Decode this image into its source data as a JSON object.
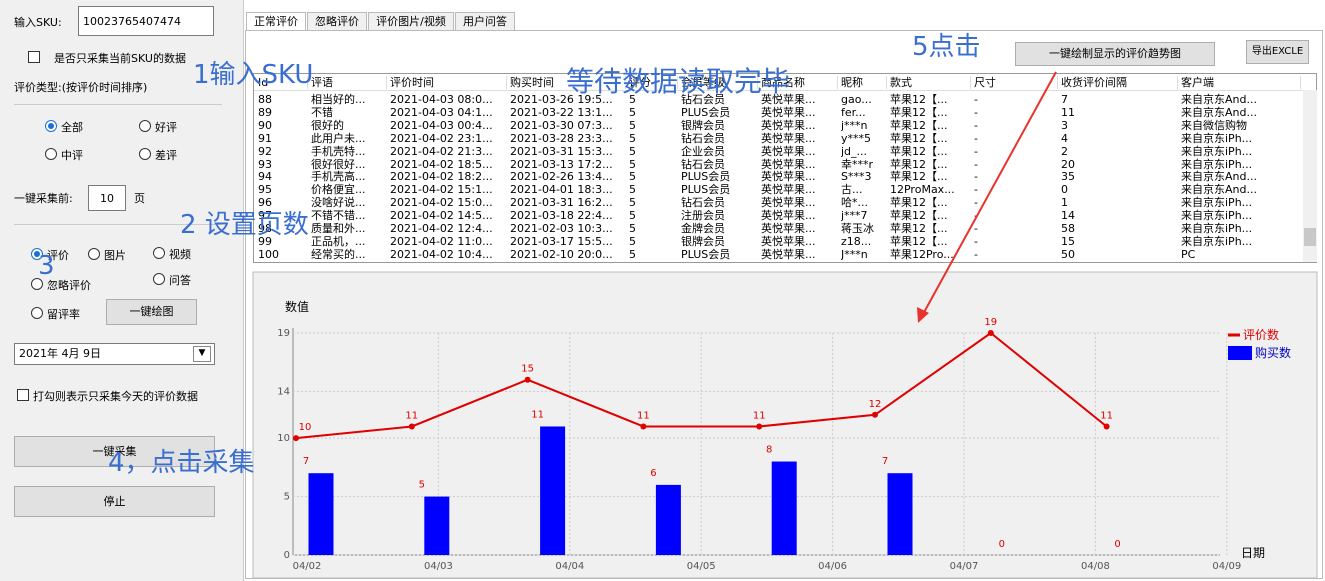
{
  "left_panel": {
    "sku_label": "输入SKU:",
    "sku_value": "10023765407474",
    "only_sku": "是否只采集当前SKU的数据",
    "review_type": "评价类型:(按评价时间排序)",
    "radios_type": [
      "全部",
      "好评",
      "中评",
      "差评"
    ],
    "pages_label": "一键采集前:",
    "pages_value": "10",
    "pages_unit": "页",
    "radios_kind": [
      "评价",
      "图片",
      "视频",
      "忽略评价",
      "问答",
      "留评率"
    ],
    "draw_button": "一键绘图",
    "date": "2021年 4月 9日",
    "today_only": "打勾则表示只采集今天的评价数据",
    "collect_button": "一键采集",
    "stop_button": "停止"
  },
  "tabs": [
    "正常评价",
    "忽略评价",
    "评价图片/视频",
    "用户问答"
  ],
  "buttons": {
    "trend": "一键绘制显示的评价趋势图",
    "export": "导出EXCLE"
  },
  "table": {
    "columns": [
      "Id",
      "评语",
      "评价时间",
      "购买时间",
      "评分",
      "会员等级",
      "商品名称",
      "昵称",
      "款式",
      "尺寸",
      "收货评价间隔",
      "客户端"
    ],
    "rows": [
      [
        "88",
        "相当好的...",
        "2021-04-03 08:0...",
        "2021-03-26 19:5...",
        "5",
        "钻石会员",
        "英悦苹果...",
        "gao...",
        "苹果12【...",
        "-",
        "7",
        "来自京东And..."
      ],
      [
        "89",
        "不错",
        "2021-04-03 04:1...",
        "2021-03-22 13:1...",
        "5",
        "PLUS会员",
        "英悦苹果...",
        "fer...",
        "苹果12【...",
        "-",
        "11",
        "来自京东And..."
      ],
      [
        "90",
        "很好的",
        "2021-04-03 00:4...",
        "2021-03-30 07:3...",
        "5",
        "银牌会员",
        "英悦苹果...",
        "j***n",
        "苹果12【...",
        "-",
        "3",
        "来自微信购物"
      ],
      [
        "91",
        "此用户未...",
        "2021-04-02 23:1...",
        "2021-03-28 23:3...",
        "5",
        "钻石会员",
        "英悦苹果...",
        "y***5",
        "苹果12【...",
        "-",
        "4",
        "来自京东iPh..."
      ],
      [
        "92",
        "手机壳特...",
        "2021-04-02 21:3...",
        "2021-03-31 15:3...",
        "5",
        "企业会员",
        "英悦苹果...",
        "jd_...",
        "苹果12【...",
        "-",
        "2",
        "来自京东iPh..."
      ],
      [
        "93",
        "很好很好...",
        "2021-04-02 18:5...",
        "2021-03-13 17:2...",
        "5",
        "钻石会员",
        "英悦苹果...",
        "幸***r",
        "苹果12【...",
        "-",
        "20",
        "来自京东iPh..."
      ],
      [
        "94",
        "手机壳高...",
        "2021-04-02 18:2...",
        "2021-02-26 13:4...",
        "5",
        "PLUS会员",
        "英悦苹果...",
        "S***3",
        "苹果12【...",
        "-",
        "35",
        "来自京东And..."
      ],
      [
        "95",
        "价格便宜...",
        "2021-04-02 15:1...",
        "2021-04-01 18:3...",
        "5",
        "PLUS会员",
        "英悦苹果...",
        "古...",
        "12ProMax...",
        "-",
        "0",
        "来自京东And..."
      ],
      [
        "96",
        "没啥好说...",
        "2021-04-02 15:0...",
        "2021-03-31 16:2...",
        "5",
        "钻石会员",
        "英悦苹果...",
        "哈*...",
        "苹果12【...",
        "-",
        "1",
        "来自京东iPh..."
      ],
      [
        "97",
        "不错不错...",
        "2021-04-02 14:5...",
        "2021-03-18 22:4...",
        "5",
        "注册会员",
        "英悦苹果...",
        "j***7",
        "苹果12【...",
        "-",
        "14",
        "来自京东iPh..."
      ],
      [
        "98",
        "质量和外...",
        "2021-04-02 12:4...",
        "2021-02-03 10:3...",
        "5",
        "金牌会员",
        "英悦苹果...",
        "蒋玉冰",
        "苹果12【...",
        "-",
        "58",
        "来自京东iPh..."
      ],
      [
        "99",
        "正品机，...",
        "2021-04-02 11:0...",
        "2021-03-17 15:5...",
        "5",
        "银牌会员",
        "英悦苹果...",
        "z18...",
        "苹果12【...",
        "-",
        "15",
        "来自京东iPh..."
      ],
      [
        "100",
        "经常买的...",
        "2021-04-02 10:4...",
        "2021-02-10 20:0...",
        "5",
        "PLUS会员",
        "英悦苹果...",
        "J***n",
        "苹果12Pro...",
        "-",
        "50",
        "PC"
      ]
    ]
  },
  "annotations": {
    "step1": "1输入SKU",
    "step2": "2 设置页数",
    "step3": "3",
    "step4": "4，点击采集",
    "step5": "5点击",
    "waiting": "等待数据读取完毕"
  },
  "chart_data": {
    "type": "bar-line",
    "y_label": "数值",
    "x_label": "日期",
    "categories": [
      "04/02",
      "04/03",
      "04/04",
      "04/05",
      "04/06",
      "04/07",
      "04/08",
      "04/09"
    ],
    "ylim": [
      0,
      19
    ],
    "yticks": [
      0,
      5,
      10,
      14,
      19
    ],
    "grid": true,
    "legend": "top-right",
    "series": [
      {
        "name": "评价数",
        "type": "line",
        "color": "#e00000",
        "values": [
          10,
          11,
          15,
          11,
          11,
          12,
          19,
          11
        ]
      },
      {
        "name": "购买数",
        "type": "bar",
        "color": "#0000ff",
        "values": [
          7,
          5,
          11,
          6,
          8,
          7,
          0,
          0
        ]
      }
    ]
  }
}
